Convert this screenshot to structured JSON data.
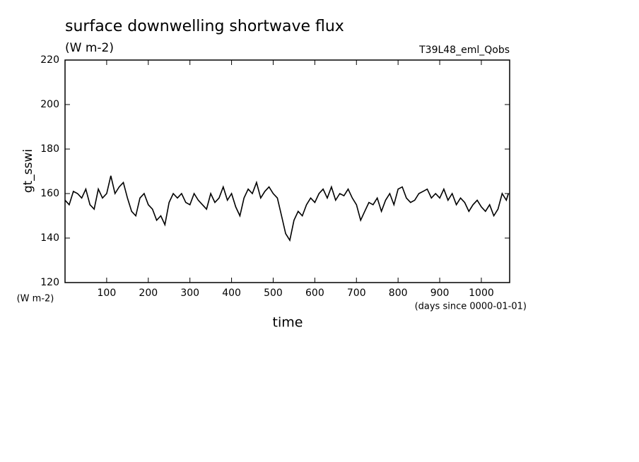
{
  "chart_data": {
    "type": "line",
    "title": "surface downwelling shortwave flux",
    "subtitle": "(W m-2)",
    "annotation": "T39L48_eml_Qobs",
    "ylabel": "gt_sswi",
    "yunit": "(W m-2)",
    "xlabel": "time",
    "xunit": "(days since 0000-01-01)",
    "xlim": [
      0,
      1068
    ],
    "ylim": [
      120,
      220
    ],
    "xticks": [
      100,
      200,
      300,
      400,
      500,
      600,
      700,
      800,
      900,
      1000
    ],
    "yticks": [
      120,
      140,
      160,
      180,
      200,
      220
    ],
    "x": [
      0,
      10,
      20,
      30,
      40,
      50,
      60,
      70,
      80,
      90,
      100,
      110,
      120,
      130,
      140,
      150,
      160,
      170,
      180,
      190,
      200,
      210,
      220,
      230,
      240,
      250,
      260,
      270,
      280,
      290,
      300,
      310,
      320,
      330,
      340,
      350,
      360,
      370,
      380,
      390,
      400,
      410,
      420,
      430,
      440,
      450,
      460,
      470,
      480,
      490,
      500,
      510,
      520,
      530,
      540,
      550,
      560,
      570,
      580,
      590,
      600,
      610,
      620,
      630,
      640,
      650,
      660,
      670,
      680,
      690,
      700,
      710,
      720,
      730,
      740,
      750,
      760,
      770,
      780,
      790,
      800,
      810,
      820,
      830,
      840,
      850,
      860,
      870,
      880,
      890,
      900,
      910,
      920,
      930,
      940,
      950,
      960,
      970,
      980,
      990,
      1000,
      1010,
      1020,
      1030,
      1040,
      1050,
      1060,
      1065
    ],
    "series": [
      {
        "color": "#000000",
        "values": [
          157,
          155,
          161,
          160,
          158,
          162,
          155,
          153,
          162,
          158,
          160,
          168,
          160,
          163,
          165,
          158,
          152,
          150,
          158,
          160,
          155,
          153,
          148,
          150,
          146,
          156,
          160,
          158,
          160,
          156,
          155,
          160,
          157,
          155,
          153,
          160,
          156,
          158,
          163,
          157,
          160,
          154,
          150,
          158,
          162,
          160,
          165,
          158,
          161,
          163,
          160,
          158,
          150,
          142,
          139,
          148,
          152,
          150,
          155,
          158,
          156,
          160,
          162,
          158,
          163,
          157,
          160,
          159,
          162,
          158,
          155,
          148,
          152,
          156,
          155,
          158,
          152,
          157,
          160,
          155,
          162,
          163,
          158,
          156,
          157,
          160,
          161,
          162,
          158,
          160,
          158,
          162,
          157,
          160,
          155,
          158,
          156,
          152,
          155,
          157,
          154,
          152,
          155,
          150,
          153,
          160,
          157,
          160
        ]
      }
    ]
  }
}
